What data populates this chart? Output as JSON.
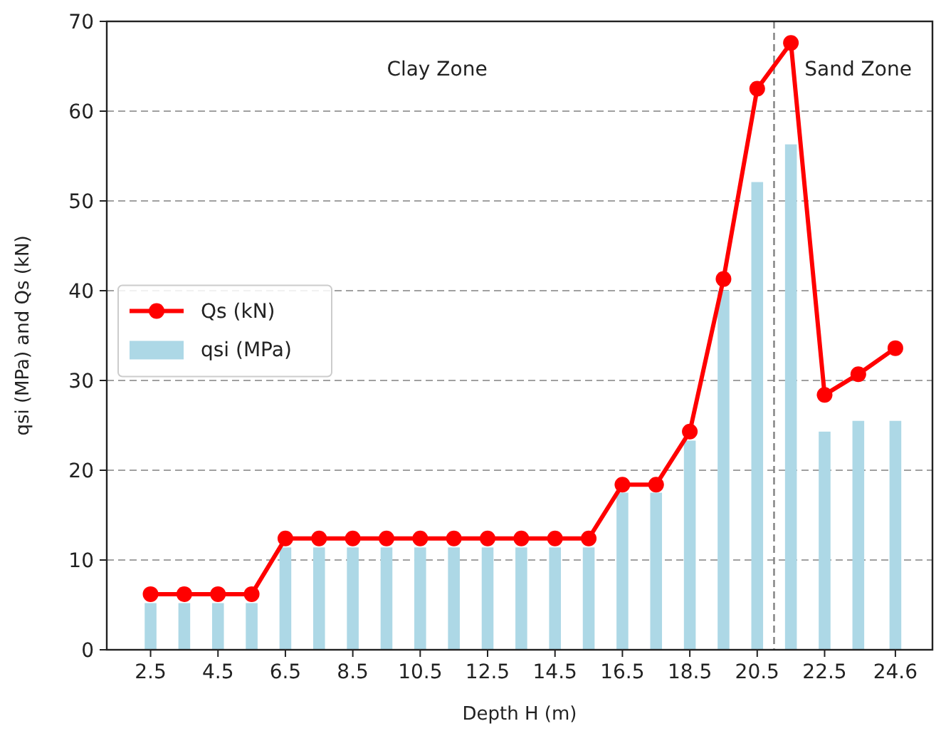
{
  "chart_data": {
    "type": "bar",
    "xlabel": "Depth H (m)",
    "ylabel": "qsi (MPa) and Qs (kN)",
    "x": [
      2.5,
      3.5,
      4.5,
      5.5,
      6.5,
      7.5,
      8.5,
      9.5,
      10.5,
      11.5,
      12.5,
      13.5,
      14.5,
      15.5,
      16.5,
      17.5,
      18.5,
      19.5,
      20.5,
      21.5,
      22.5,
      23.5,
      24.6
    ],
    "xlim": [
      1.2,
      25.7
    ],
    "xticks": [
      2.5,
      4.5,
      6.5,
      8.5,
      10.5,
      12.5,
      14.5,
      16.5,
      18.5,
      20.5,
      22.5,
      24.6
    ],
    "series": [
      {
        "name": "Qs (kN)",
        "type": "line",
        "color": "#ff0000",
        "marker": "circle",
        "values": [
          6.2,
          6.2,
          6.2,
          6.2,
          12.4,
          12.4,
          12.4,
          12.4,
          12.4,
          12.4,
          12.4,
          12.4,
          12.4,
          12.4,
          18.4,
          18.4,
          24.3,
          41.3,
          62.5,
          67.6,
          28.4,
          30.7,
          33.6
        ]
      },
      {
        "name": "qsi (MPa)",
        "color": "#add8e6",
        "values": [
          5.2,
          5.2,
          5.2,
          5.2,
          11.4,
          11.4,
          11.4,
          11.4,
          11.4,
          11.4,
          11.4,
          11.4,
          11.4,
          11.4,
          17.5,
          17.5,
          23.3,
          40,
          52.1,
          56.3,
          24.3,
          25.5,
          25.5
        ]
      }
    ],
    "ylim": [
      0,
      70
    ],
    "yticks": [
      0,
      10,
      20,
      30,
      40,
      50,
      60,
      70
    ],
    "grid": "y",
    "legend": "left",
    "ref_lines": [
      {
        "axis": "x",
        "value": 21,
        "color": "#808080",
        "line_style": "dashed"
      }
    ],
    "annotations": [
      "Clay Zone",
      "Sand Zone"
    ]
  }
}
